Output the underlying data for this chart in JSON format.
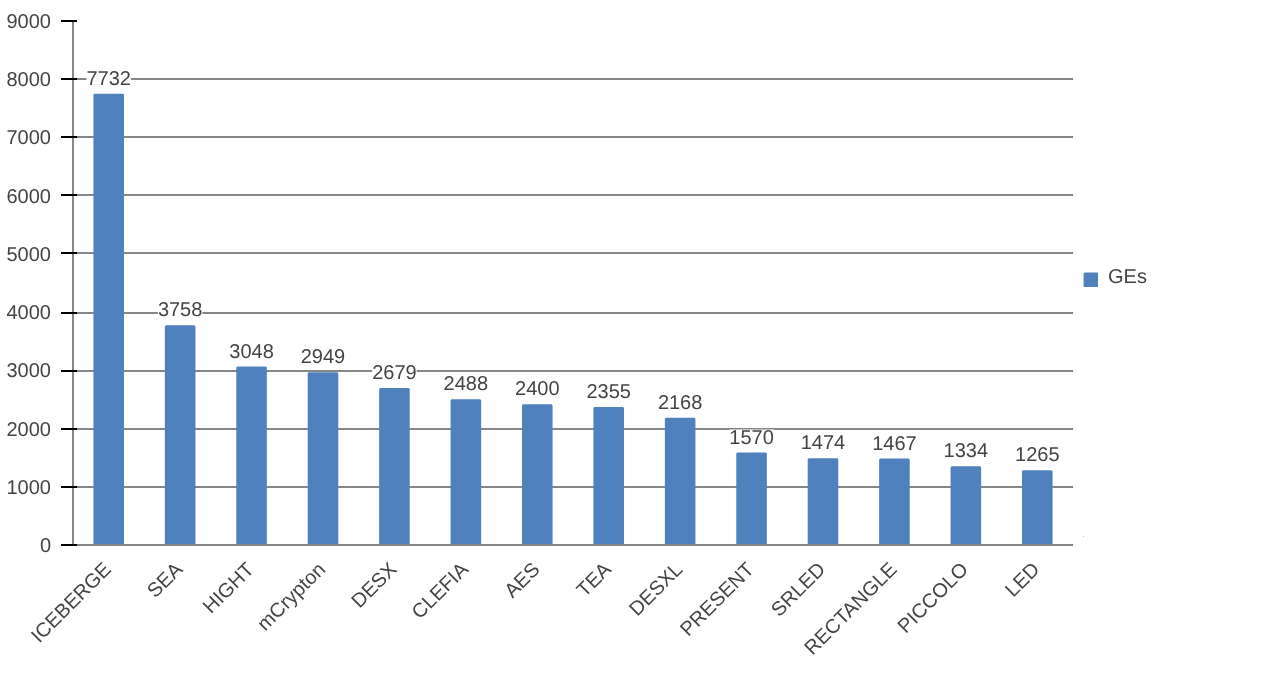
{
  "chart_data": {
    "type": "bar",
    "categories": [
      "ICEBERGE",
      "SEA",
      "HIGHT",
      "mCrypton",
      "DESX",
      "CLEFIA",
      "AES",
      "TEA",
      "DESXL",
      "PRESENT",
      "SRLED",
      "RECTANGLE",
      "PICCOLO",
      "LED"
    ],
    "series": [
      {
        "name": "GEs",
        "color": "#4f81bd",
        "values": [
          7732,
          3758,
          3048,
          2949,
          2679,
          2488,
          2400,
          2355,
          2168,
          1570,
          1474,
          1467,
          1334,
          1265
        ]
      }
    ],
    "ylim": [
      0,
      9000
    ],
    "yticks": [
      0,
      1000,
      2000,
      3000,
      4000,
      5000,
      6000,
      7000,
      8000,
      9000
    ],
    "grid": "y",
    "legend": "right",
    "data_labels": true
  }
}
